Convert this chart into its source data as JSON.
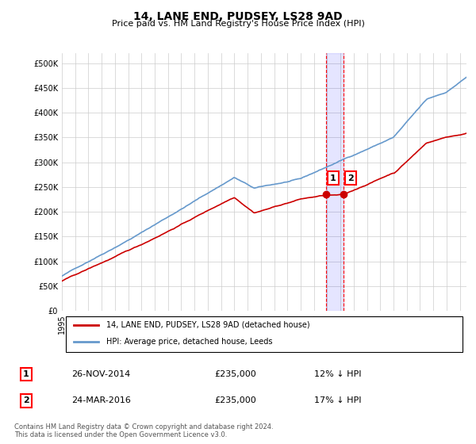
{
  "title": "14, LANE END, PUDSEY, LS28 9AD",
  "subtitle": "Price paid vs. HM Land Registry's House Price Index (HPI)",
  "ylabel_ticks": [
    "£0",
    "£50K",
    "£100K",
    "£150K",
    "£200K",
    "£250K",
    "£300K",
    "£350K",
    "£400K",
    "£450K",
    "£500K"
  ],
  "ytick_values": [
    0,
    50000,
    100000,
    150000,
    200000,
    250000,
    300000,
    350000,
    400000,
    450000,
    500000
  ],
  "ylim": [
    0,
    520000
  ],
  "xlim_start": 1995.0,
  "xlim_end": 2025.5,
  "hpi_color": "#6699cc",
  "price_color": "#cc0000",
  "transaction1_date": 2014.91,
  "transaction2_date": 2016.23,
  "transaction1_price": 235000,
  "transaction2_price": 235000,
  "legend_label1": "14, LANE END, PUDSEY, LS28 9AD (detached house)",
  "legend_label2": "HPI: Average price, detached house, Leeds",
  "sale1_label": "1",
  "sale2_label": "2",
  "sale1_date_str": "26-NOV-2014",
  "sale2_date_str": "24-MAR-2016",
  "sale1_hpi_diff": "12% ↓ HPI",
  "sale2_hpi_diff": "17% ↓ HPI",
  "footer": "Contains HM Land Registry data © Crown copyright and database right 2024.\nThis data is licensed under the Open Government Licence v3.0.",
  "grid_color": "#cccccc",
  "background_color": "#ffffff"
}
